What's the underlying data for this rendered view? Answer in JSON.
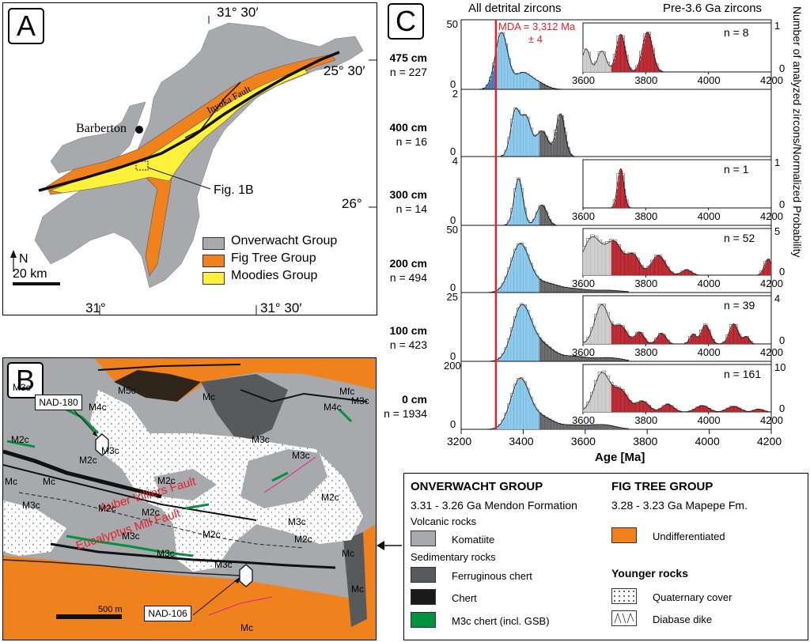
{
  "panel_a": {
    "letter": "A",
    "coord_top": "31° 30′",
    "coord_right_top": "25° 30′",
    "coord_right_mid": "26°",
    "coord_bottom_left": "31°",
    "coord_bottom_right": "31° 30′",
    "place": "Barberton",
    "fault": "Inyoka Fault",
    "fig_ref": "Fig. 1B",
    "north": "N",
    "scale": "20 km",
    "legend": [
      {
        "label": "Onverwacht Group",
        "color": "#a7a9ac"
      },
      {
        "label": "Fig Tree Group",
        "color": "#f0821e"
      },
      {
        "label": "Moodies Group",
        "color": "#fff13a"
      }
    ]
  },
  "panel_b": {
    "letter": "B",
    "sample_1": "NAD-180",
    "sample_2": "NAD-106",
    "fault_1": "Auber Villiers Fault",
    "fault_2": "Eucalyptus Mill Fault",
    "scale": "500 m",
    "unit_labels": [
      "M3c",
      "M2c",
      "Mc",
      "M5c",
      "M4c",
      "Mc",
      "M3c",
      "M4c",
      "Mfc",
      "M2c",
      "M3c",
      "M3c",
      "M2c",
      "M2c",
      "M2c",
      "M2c",
      "M3c",
      "M2c",
      "M3c",
      "M3c",
      "M3c",
      "Mc",
      "Mc",
      "Mc",
      "M2c",
      "M3c",
      "M3c",
      "Mc"
    ]
  },
  "legend_b": {
    "onverwacht_title": "ONVERWACHT GROUP",
    "mendon": "3.31 - 3.26 Ga Mendon Formation",
    "volcanic": "Volcanic rocks",
    "komatiite": "Komatiite",
    "sedimentary": "Sedimentary rocks",
    "ferruginous": "Ferruginous chert",
    "chert": "Chert",
    "m3c": "M3c chert (incl. GSB)",
    "figtree_title": "FIG TREE GROUP",
    "mapepe": "3.28 - 3.23 Ga Mapepe Fm.",
    "undiff": "Undifferentiated",
    "younger": "Younger rocks",
    "quaternary": "Quaternary cover",
    "diabase": "Diabase dike",
    "colors": {
      "komatiite": "#a7a9ac",
      "ferruginous": "#58595b",
      "chert": "#1a1a1a",
      "m3c": "#00923f",
      "undiff": "#f0821e"
    }
  },
  "chart_data": {
    "type": "histogram",
    "panel_letter": "C",
    "title_left": "All detrital zircons",
    "title_right": "Pre-3.6 Ga zircons",
    "xlabel": "Age [Ma]",
    "ylabel": "Number of analyzed zircons/Normalized Probability",
    "xlim": [
      3200,
      4200
    ],
    "x_ticks": [
      3200,
      3400,
      3600,
      3800,
      4000,
      4200
    ],
    "mda_label_1": "MDA = 3,312 Ma",
    "mda_label_2": "± 4",
    "mda_age": 3312,
    "samples": [
      {
        "name": "475 cm",
        "n": "n = 227",
        "y_ticks": [
          "50",
          "0"
        ],
        "ymax": 55,
        "peaks": [
          [
            3330,
            48,
            20
          ],
          [
            3395,
            12,
            25
          ],
          [
            3440,
            6,
            30
          ]
        ],
        "inset": {
          "n": "n = 8",
          "y_ticks": [
            "1",
            "0"
          ],
          "peaks": [
            [
              3610,
              0.55,
              12
            ],
            [
              3660,
              0.5,
              14
            ],
            [
              3720,
              0.9,
              14
            ],
            [
              3805,
              0.95,
              16
            ]
          ]
        }
      },
      {
        "name": "400 cm",
        "n": "n = 16",
        "y_ticks": [
          "2",
          "0"
        ],
        "ymax": 2.2,
        "peaks": [
          [
            3375,
            1.6,
            15
          ],
          [
            3410,
            1.3,
            15
          ],
          [
            3460,
            0.9,
            20
          ],
          [
            3520,
            1.5,
            14
          ]
        ]
      },
      {
        "name": "300 cm",
        "n": "n = 14",
        "y_ticks": [
          "4",
          "0"
        ],
        "ymax": 4.4,
        "peaks": [
          [
            3385,
            3.2,
            14
          ],
          [
            3460,
            1.4,
            16
          ]
        ],
        "inset": {
          "n": "n = 1",
          "y_ticks": [
            "1",
            "0"
          ],
          "peaks": [
            [
              3720,
              0.9,
              10
            ]
          ]
        }
      },
      {
        "name": "200 cm",
        "n": "n = 494",
        "y_ticks": [
          "50",
          "0"
        ],
        "ymax": 55,
        "peaks": [
          [
            3390,
            42,
            30
          ],
          [
            3470,
            8,
            40
          ],
          [
            3560,
            3,
            40
          ],
          [
            3670,
            2,
            50
          ]
        ],
        "inset": {
          "n": "n = 52",
          "y_ticks": [
            "5",
            "0"
          ],
          "peaks": [
            [
              3630,
              4.2,
              30
            ],
            [
              3700,
              3.5,
              25
            ],
            [
              3760,
              2.2,
              20
            ],
            [
              3840,
              2.2,
              22
            ],
            [
              4190,
              1.8,
              12
            ],
            [
              3930,
              0.6,
              15
            ]
          ]
        }
      },
      {
        "name": "100 cm",
        "n": "n = 423",
        "y_ticks": [
          "25",
          "0"
        ],
        "ymax": 38,
        "peaks": [
          [
            3395,
            32,
            30
          ],
          [
            3460,
            9,
            35
          ],
          [
            3560,
            3,
            50
          ],
          [
            3680,
            2,
            40
          ]
        ],
        "inset": {
          "n": "n = 39",
          "y_ticks": [
            "4",
            "0"
          ],
          "peaks": [
            [
              3660,
              3.3,
              22
            ],
            [
              3720,
              1.5,
              20
            ],
            [
              3780,
              1.0,
              14
            ],
            [
              3850,
              0.9,
              14
            ],
            [
              3990,
              1.6,
              14
            ],
            [
              4080,
              1.7,
              14
            ],
            [
              3950,
              0.8,
              10
            ],
            [
              4120,
              0.6,
              10
            ]
          ]
        }
      },
      {
        "name": "0 cm",
        "n": "n = 1934",
        "y_ticks": [
          "200",
          "0"
        ],
        "ymax": 230,
        "peaks": [
          [
            3390,
            180,
            30
          ],
          [
            3460,
            40,
            35
          ],
          [
            3560,
            15,
            50
          ],
          [
            3660,
            15,
            40
          ]
        ],
        "inset": {
          "n": "n = 161",
          "y_ticks": [
            "10",
            "0"
          ],
          "peaks": [
            [
              3660,
              11,
              25
            ],
            [
              3720,
              6,
              24
            ],
            [
              3790,
              3,
              20
            ],
            [
              3870,
              2.2,
              18
            ],
            [
              3980,
              1.8,
              20
            ],
            [
              4080,
              1.6,
              20
            ],
            [
              4160,
              0.8,
              15
            ]
          ]
        }
      }
    ]
  }
}
